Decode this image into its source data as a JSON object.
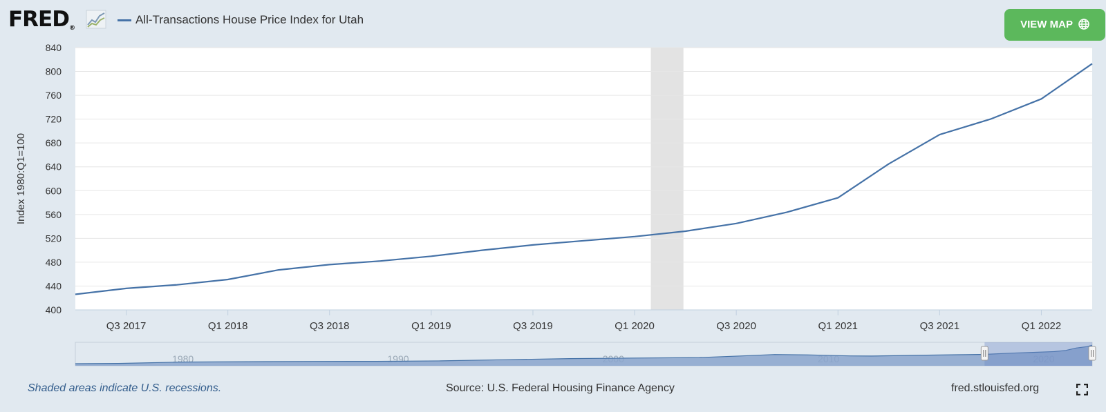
{
  "header": {
    "logo_text": "FRED",
    "logo_mark": "®",
    "series_label": "All-Transactions House Price Index for Utah",
    "view_map_label": "VIEW MAP",
    "view_map_icon": "globe-icon",
    "series_color": "#4572a7",
    "button_color": "#5cb85c"
  },
  "chart_data": {
    "type": "line",
    "title": "All-Transactions House Price Index for Utah",
    "ylabel": "Index 1980:Q1=100",
    "xlabel": "",
    "ylim": [
      400,
      840
    ],
    "yticks": [
      400,
      440,
      480,
      520,
      560,
      600,
      640,
      680,
      720,
      760,
      800,
      840
    ],
    "grid": true,
    "xlim": [
      2017.25,
      2022.25
    ],
    "xticks": [
      {
        "t": 2017.5,
        "label": "Q3 2017"
      },
      {
        "t": 2018.0,
        "label": "Q1 2018"
      },
      {
        "t": 2018.5,
        "label": "Q3 2018"
      },
      {
        "t": 2019.0,
        "label": "Q1 2019"
      },
      {
        "t": 2019.5,
        "label": "Q3 2019"
      },
      {
        "t": 2020.0,
        "label": "Q1 2020"
      },
      {
        "t": 2020.5,
        "label": "Q3 2020"
      },
      {
        "t": 2021.0,
        "label": "Q1 2021"
      },
      {
        "t": 2021.5,
        "label": "Q3 2021"
      },
      {
        "t": 2022.0,
        "label": "Q1 2022"
      }
    ],
    "recession": [
      2020.08,
      2020.24
    ],
    "series": [
      {
        "name": "All-Transactions House Price Index for Utah",
        "color": "#4572a7",
        "points": [
          [
            2017.25,
            426
          ],
          [
            2017.5,
            436
          ],
          [
            2017.75,
            442
          ],
          [
            2018.0,
            451
          ],
          [
            2018.25,
            467
          ],
          [
            2018.5,
            476
          ],
          [
            2018.75,
            482
          ],
          [
            2019.0,
            490
          ],
          [
            2019.25,
            500
          ],
          [
            2019.5,
            509
          ],
          [
            2019.75,
            516
          ],
          [
            2020.0,
            523
          ],
          [
            2020.25,
            532
          ],
          [
            2020.5,
            545
          ],
          [
            2020.75,
            564
          ],
          [
            2021.0,
            588
          ],
          [
            2021.25,
            645
          ],
          [
            2021.5,
            694
          ],
          [
            2021.75,
            720
          ],
          [
            2022.0,
            754
          ],
          [
            2022.25,
            813
          ]
        ]
      }
    ],
    "navigator": {
      "labels": [
        {
          "t": 1980,
          "label": "1980"
        },
        {
          "t": 1990,
          "label": "1990"
        },
        {
          "t": 2000,
          "label": "2000"
        },
        {
          "t": 2010,
          "label": "2010"
        },
        {
          "t": 2020,
          "label": "2020"
        }
      ],
      "range": [
        1975.0,
        2022.25
      ],
      "ymax": 820,
      "selected": [
        2017.25,
        2022.25
      ],
      "points": [
        [
          1975.0,
          30
        ],
        [
          1977,
          40
        ],
        [
          1980,
          100
        ],
        [
          1983,
          115
        ],
        [
          1986,
          125
        ],
        [
          1989,
          130
        ],
        [
          1992,
          150
        ],
        [
          1995,
          200
        ],
        [
          1998,
          245
        ],
        [
          2001,
          270
        ],
        [
          2004,
          290
        ],
        [
          2006,
          360
        ],
        [
          2007.5,
          420
        ],
        [
          2009,
          405
        ],
        [
          2011,
          360
        ],
        [
          2012,
          355
        ],
        [
          2014,
          385
        ],
        [
          2016,
          410
        ],
        [
          2017.25,
          426
        ],
        [
          2018.5,
          476
        ],
        [
          2019.5,
          509
        ],
        [
          2020.5,
          545
        ],
        [
          2021,
          588
        ],
        [
          2021.5,
          694
        ],
        [
          2022,
          754
        ],
        [
          2022.25,
          813
        ]
      ]
    }
  },
  "footer": {
    "recession_note": "Shaded areas indicate U.S. recessions.",
    "source": "Source: U.S. Federal Housing Finance Agency",
    "site": "fred.stlouisfed.org"
  }
}
